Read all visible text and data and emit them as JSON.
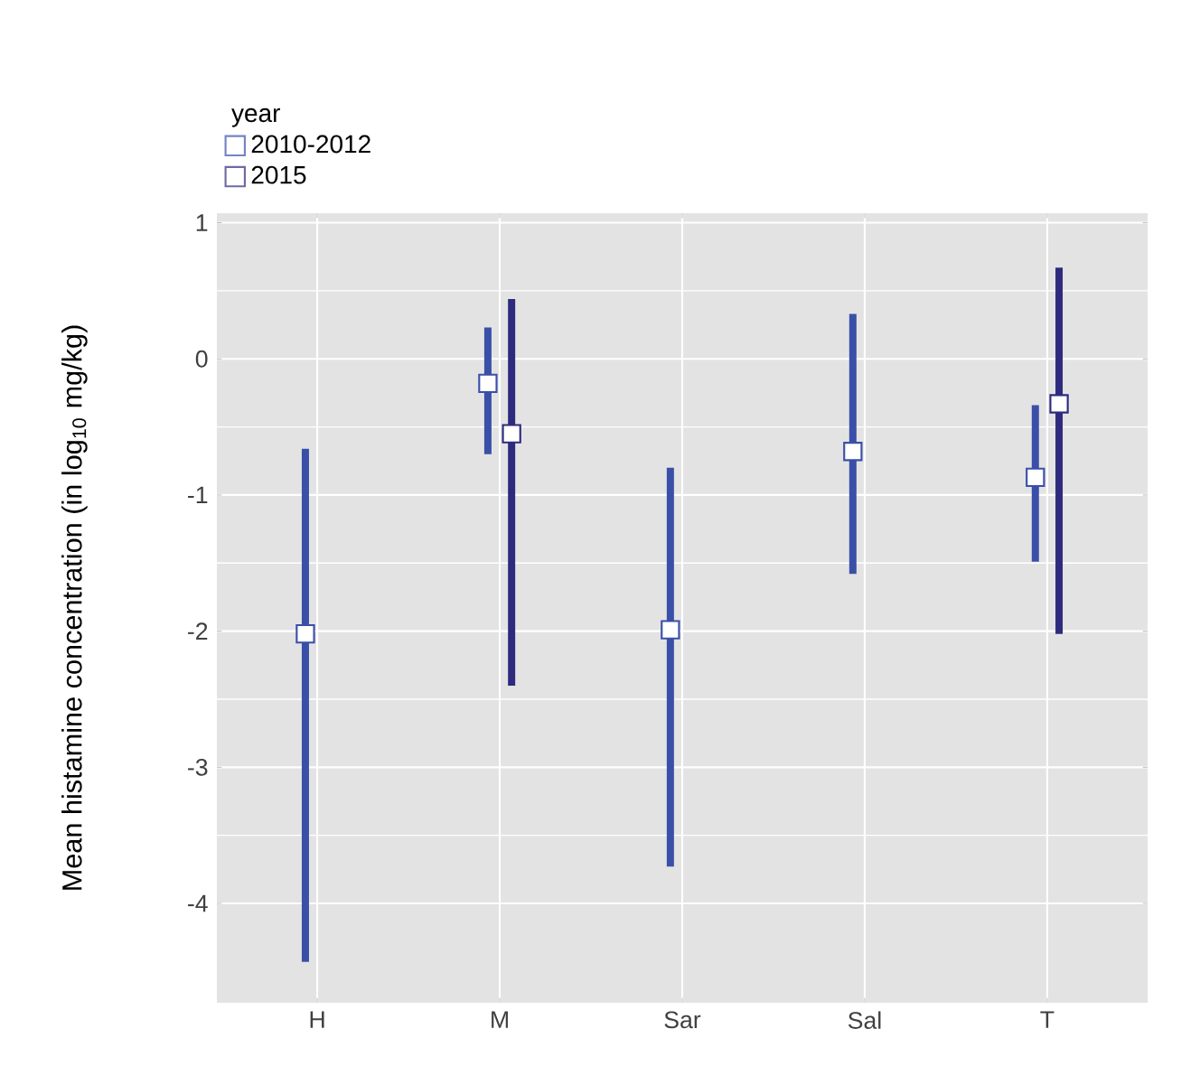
{
  "chart_data": {
    "type": "scatter",
    "ylabel": "Mean histamine concentration (in log$_{10}$ mg/kg)",
    "legend_title": "year",
    "categories": [
      "H",
      "M",
      "Sar",
      "Sal",
      "T"
    ],
    "series": [
      {
        "name": "2010-2012",
        "color": "#3a4fa8",
        "values": [
          -2.02,
          -0.18,
          -1.99,
          -0.68,
          -0.87
        ],
        "errors": [
          [
            -4.43,
            -0.66
          ],
          [
            -0.7,
            0.23
          ],
          [
            -3.73,
            -0.8
          ],
          [
            -1.58,
            0.33
          ],
          [
            -1.49,
            -0.34
          ]
        ]
      },
      {
        "name": "2015",
        "color": "#2e2a7e",
        "values": [
          null,
          -0.55,
          null,
          null,
          -0.33
        ],
        "errors": [
          null,
          [
            -2.4,
            0.44
          ],
          null,
          null,
          [
            -2.02,
            0.67
          ]
        ]
      }
    ],
    "ylim": [
      -4.73,
      1.07
    ],
    "yticks": [
      -4,
      -3,
      -2,
      -1,
      0,
      1
    ],
    "grid": true,
    "legend": "top left",
    "marker": "square"
  }
}
